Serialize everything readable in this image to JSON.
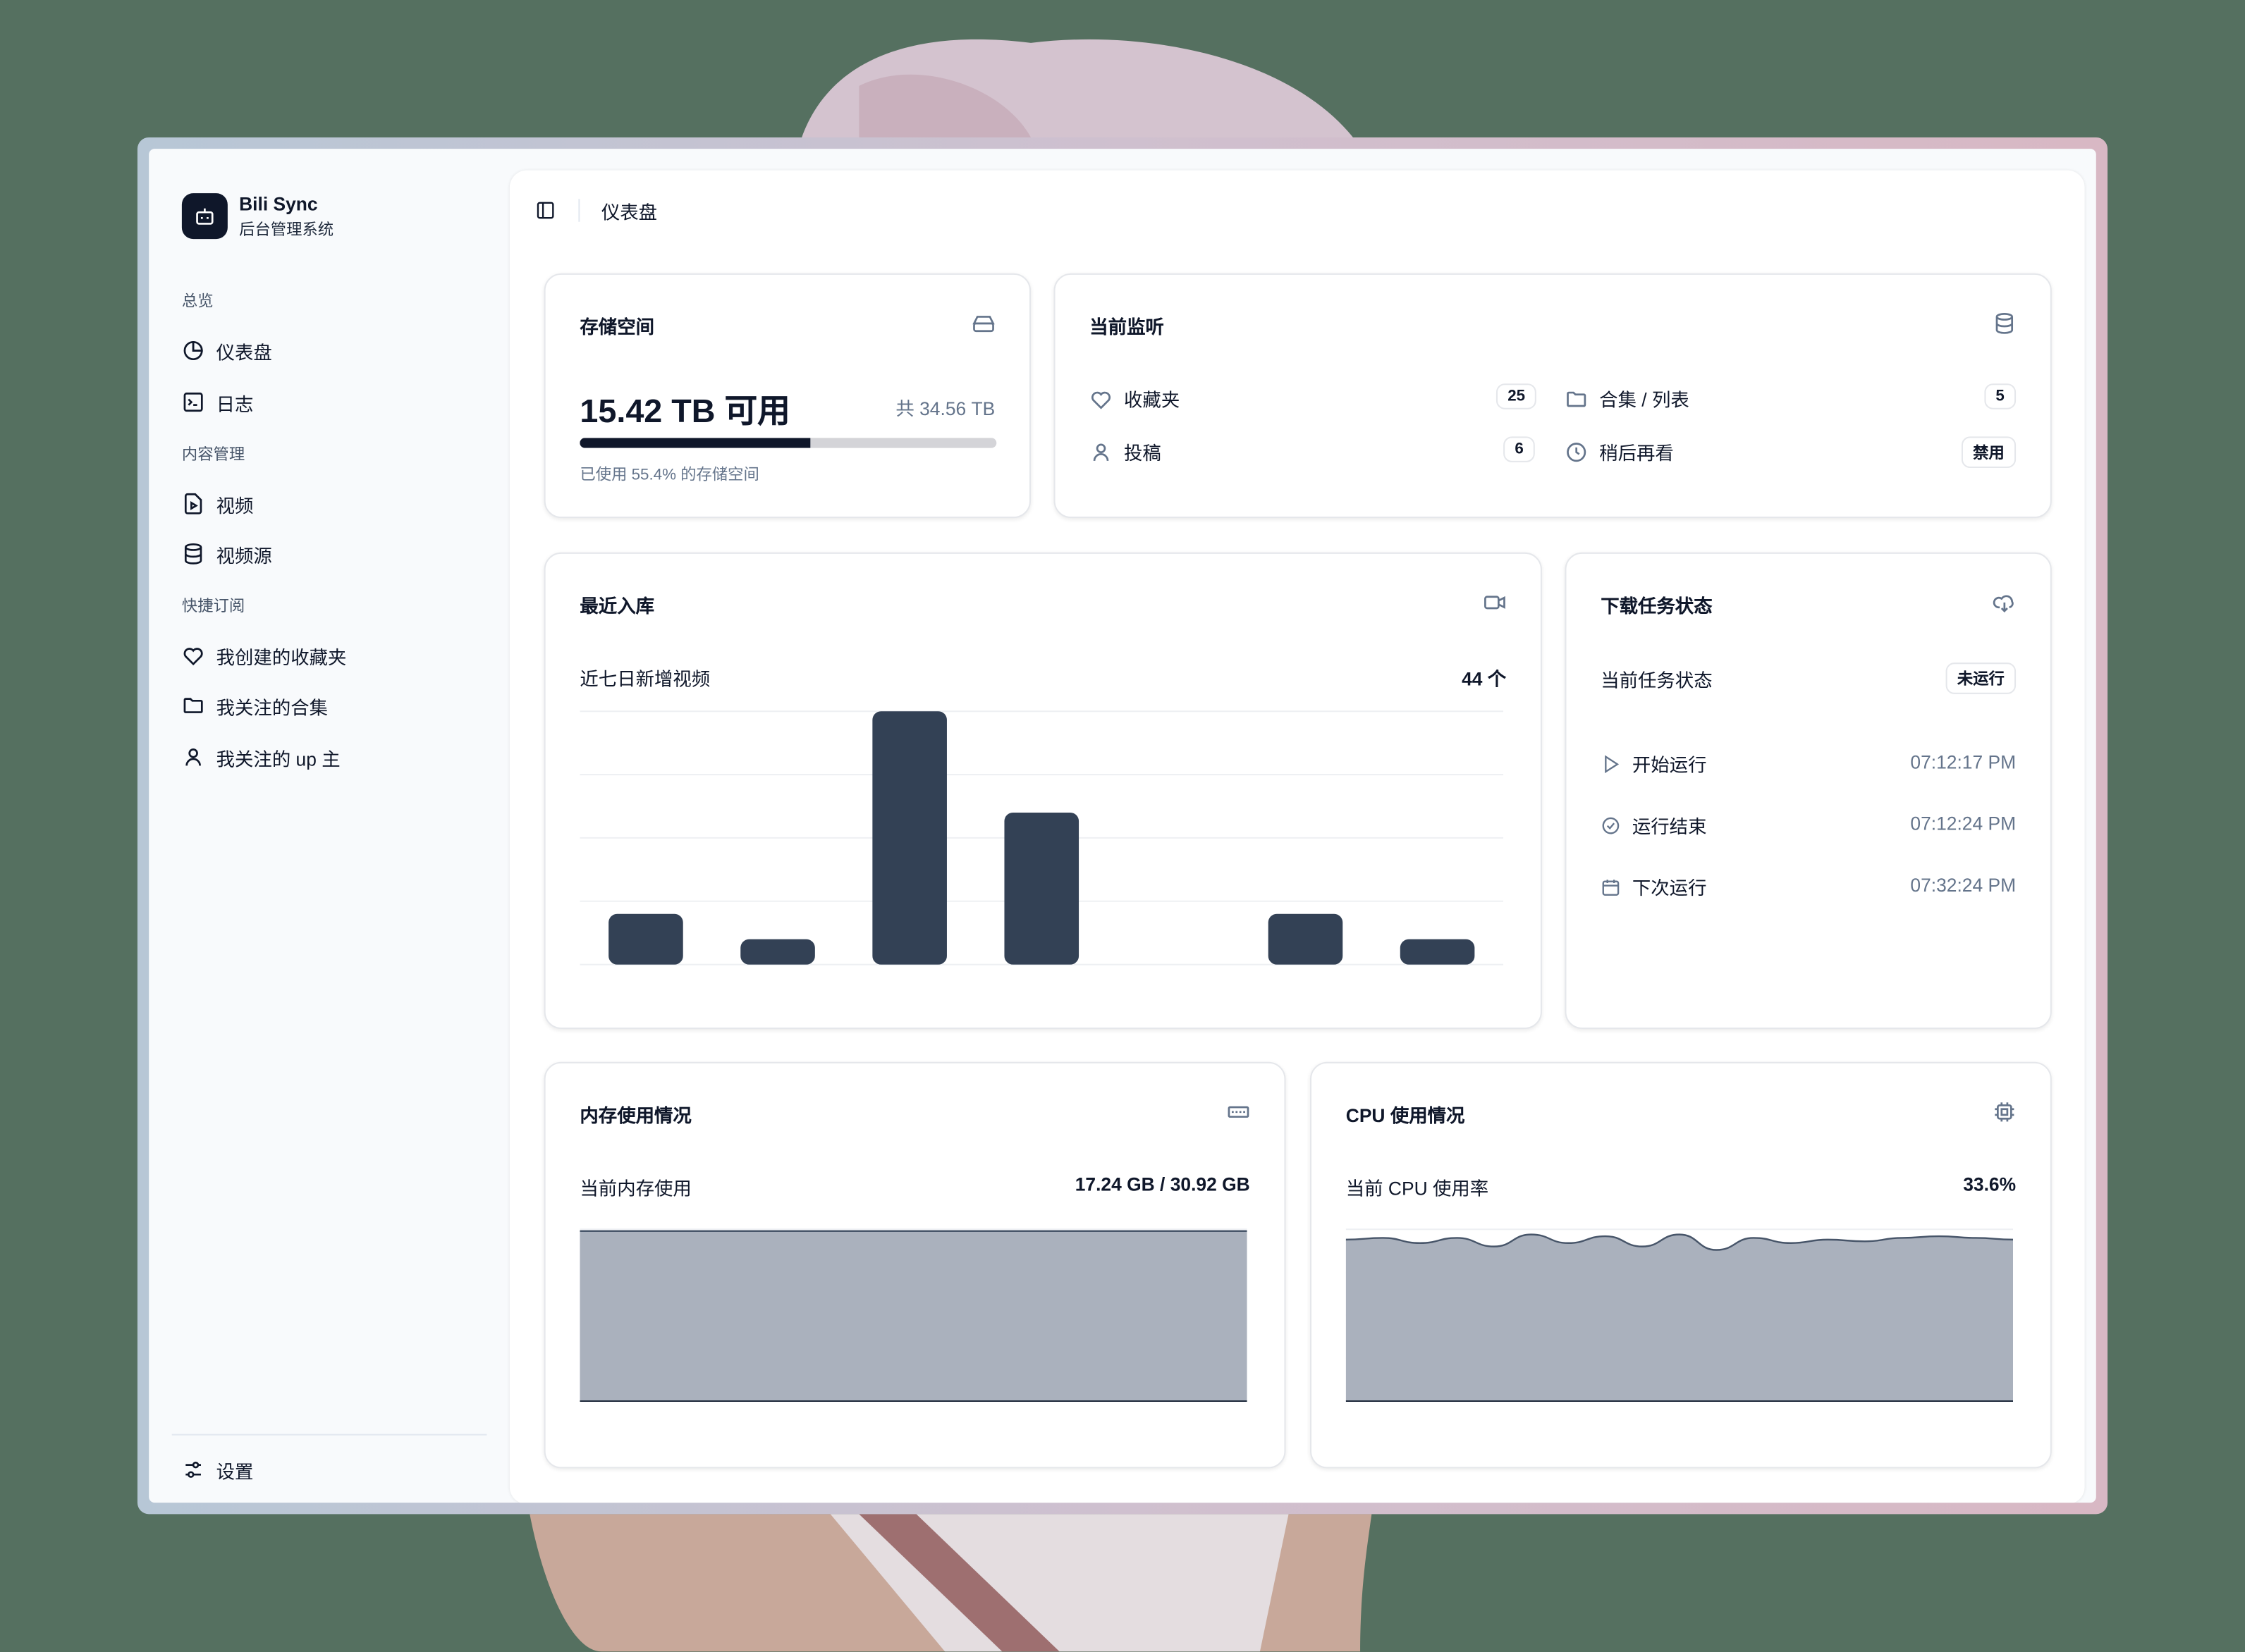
{
  "app": {
    "name": "Bili Sync",
    "subtitle": "后台管理系统"
  },
  "sidebar": {
    "groups": [
      {
        "label": "总览",
        "items": [
          {
            "label": "仪表盘",
            "icon": "pie-chart-icon"
          },
          {
            "label": "日志",
            "icon": "terminal-icon"
          }
        ]
      },
      {
        "label": "内容管理",
        "items": [
          {
            "label": "视频",
            "icon": "file-video-icon"
          },
          {
            "label": "视频源",
            "icon": "database-icon"
          }
        ]
      },
      {
        "label": "快捷订阅",
        "items": [
          {
            "label": "我创建的收藏夹",
            "icon": "heart-icon"
          },
          {
            "label": "我关注的合集",
            "icon": "folder-icon"
          },
          {
            "label": "我关注的 up 主",
            "icon": "user-icon"
          }
        ]
      }
    ],
    "settings": "设置"
  },
  "header": {
    "breadcrumb": "仪表盘"
  },
  "storage": {
    "title": "存储空间",
    "available": "15.42 TB 可用",
    "total": "共 34.56 TB",
    "used_percent": 55.4,
    "used_text": "已使用 55.4% 的存储空间"
  },
  "monitor": {
    "title": "当前监听",
    "items": [
      {
        "label": "收藏夹",
        "value": "25"
      },
      {
        "label": "合集 / 列表",
        "value": "5"
      },
      {
        "label": "投稿",
        "value": "6"
      },
      {
        "label": "稍后再看",
        "value": "禁用"
      }
    ]
  },
  "recent": {
    "title": "最近入库",
    "subtitle": "近七日新增视频",
    "count": "44 个"
  },
  "download": {
    "title": "下载任务状态",
    "status_label": "当前任务状态",
    "status": "未运行",
    "rows": [
      {
        "label": "开始运行",
        "time": "07:12:17 PM"
      },
      {
        "label": "运行结束",
        "time": "07:12:24 PM"
      },
      {
        "label": "下次运行",
        "time": "07:32:24 PM"
      }
    ]
  },
  "memory": {
    "title": "内存使用情况",
    "label": "当前内存使用",
    "value": "17.24 GB / 30.92 GB"
  },
  "cpu": {
    "title": "CPU 使用情况",
    "label": "当前 CPU 使用率",
    "value": "33.6%"
  },
  "colors": {
    "bar": "#334155",
    "area": "#aab1bd",
    "progress": "#0f172a",
    "background": "#557060"
  },
  "chart_data": [
    {
      "type": "bar",
      "values": [
        4,
        2,
        20,
        12,
        0,
        4,
        2
      ],
      "ylim": [
        0,
        20
      ],
      "grid": true
    },
    {
      "type": "area",
      "name": "memory",
      "values": [
        99,
        99,
        99,
        99,
        99,
        99,
        99,
        99,
        99,
        99,
        99,
        99
      ]
    },
    {
      "type": "area",
      "name": "cpu",
      "values": [
        94,
        95,
        92,
        95,
        90,
        97,
        92,
        96,
        90,
        97,
        88,
        95,
        92,
        94,
        93,
        95,
        96,
        95,
        94
      ]
    }
  ]
}
